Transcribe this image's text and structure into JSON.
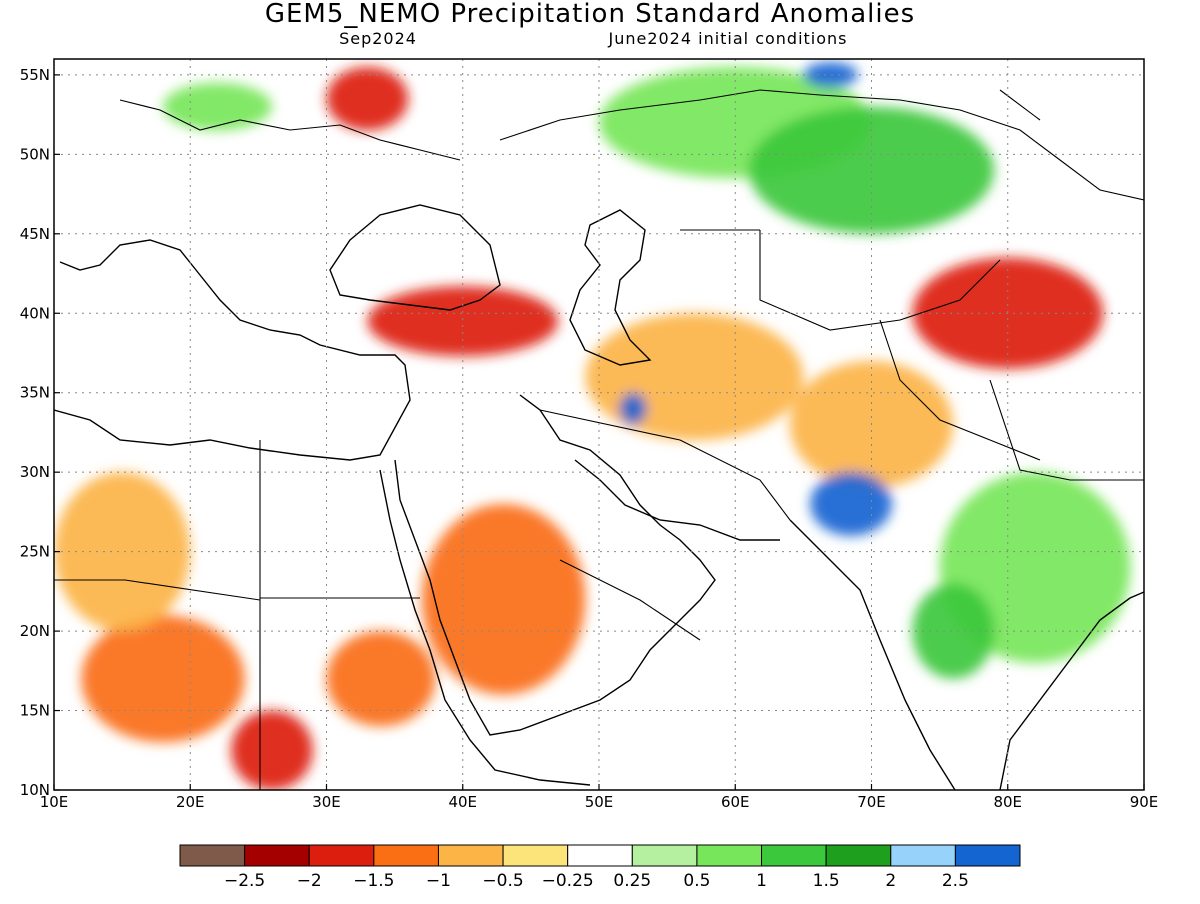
{
  "title": "GEM5_NEMO Precipitation Standard Anomalies",
  "subtitle_left": "Sep2024",
  "subtitle_right": "June2024 initial conditions",
  "map": {
    "lon_range": [
      10,
      90
    ],
    "lat_range": [
      10,
      56
    ],
    "lon_ticks": [
      {
        "value": 10,
        "label": "10E"
      },
      {
        "value": 20,
        "label": "20E"
      },
      {
        "value": 30,
        "label": "30E"
      },
      {
        "value": 40,
        "label": "40E"
      },
      {
        "value": 50,
        "label": "50E"
      },
      {
        "value": 60,
        "label": "60E"
      },
      {
        "value": 70,
        "label": "70E"
      },
      {
        "value": 80,
        "label": "80E"
      },
      {
        "value": 90,
        "label": "90E"
      }
    ],
    "lat_ticks": [
      {
        "value": 10,
        "label": "10N"
      },
      {
        "value": 15,
        "label": "15N"
      },
      {
        "value": 20,
        "label": "20N"
      },
      {
        "value": 25,
        "label": "25N"
      },
      {
        "value": 30,
        "label": "30N"
      },
      {
        "value": 35,
        "label": "35N"
      },
      {
        "value": 40,
        "label": "40N"
      },
      {
        "value": 45,
        "label": "45N"
      },
      {
        "value": 50,
        "label": "50N"
      },
      {
        "value": 55,
        "label": "55N"
      }
    ],
    "grid": true
  },
  "legend": {
    "colors": [
      "#7f5a4a",
      "#a50000",
      "#dc1e0f",
      "#fa6e14",
      "#fcb446",
      "#fce37a",
      "#ffffff",
      "#b4f0a0",
      "#78e65a",
      "#3cc83c",
      "#1ea01e",
      "#96d2fa",
      "#1464d2"
    ],
    "labels": [
      "−2.5",
      "−2",
      "−1.5",
      "−1",
      "−0.5",
      "−0.25",
      "0.25",
      "0.5",
      "1",
      "1.5",
      "2",
      "2.5"
    ]
  },
  "anomaly_regions": [
    {
      "lon": 33,
      "lat": 53.5,
      "rx": 3,
      "ry": 2,
      "level": "-1.5"
    },
    {
      "lon": 40,
      "lat": 39.5,
      "rx": 7,
      "ry": 2.2,
      "level": "-1.5"
    },
    {
      "lon": 80,
      "lat": 40,
      "rx": 7,
      "ry": 3.5,
      "level": "-1.5"
    },
    {
      "lon": 26,
      "lat": 12.5,
      "rx": 3,
      "ry": 2.5,
      "level": "-1.5"
    },
    {
      "lon": 34,
      "lat": 17,
      "rx": 4,
      "ry": 3,
      "level": "-1"
    },
    {
      "lon": 43,
      "lat": 22,
      "rx": 6,
      "ry": 6,
      "level": "-1"
    },
    {
      "lon": 18,
      "lat": 17,
      "rx": 6,
      "ry": 4,
      "level": "-1"
    },
    {
      "lon": 57,
      "lat": 36,
      "rx": 8,
      "ry": 4,
      "level": "-0.5"
    },
    {
      "lon": 70,
      "lat": 33,
      "rx": 6,
      "ry": 4,
      "level": "-0.5"
    },
    {
      "lon": 15,
      "lat": 25,
      "rx": 5,
      "ry": 5,
      "level": "-0.5"
    },
    {
      "lon": 60,
      "lat": 52,
      "rx": 10,
      "ry": 3.5,
      "level": "1"
    },
    {
      "lon": 70,
      "lat": 49,
      "rx": 9,
      "ry": 4,
      "level": "1.5"
    },
    {
      "lon": 68.5,
      "lat": 28,
      "rx": 3,
      "ry": 2,
      "level": "2.5"
    },
    {
      "lon": 82,
      "lat": 24,
      "rx": 7,
      "ry": 6,
      "level": "1"
    },
    {
      "lon": 76,
      "lat": 20,
      "rx": 3,
      "ry": 3,
      "level": "1.5"
    },
    {
      "lon": 52.5,
      "lat": 34,
      "rx": 1,
      "ry": 1,
      "level": "2.5"
    },
    {
      "lon": 22,
      "lat": 53,
      "rx": 4,
      "ry": 1.5,
      "level": "1"
    },
    {
      "lon": 67,
      "lat": 55,
      "rx": 2,
      "ry": 0.8,
      "level": "2.5"
    }
  ]
}
